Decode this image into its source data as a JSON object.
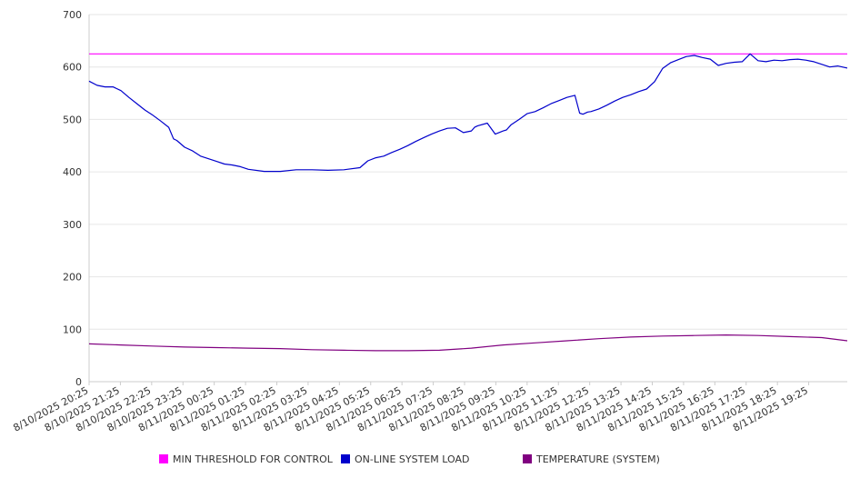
{
  "chart_data": {
    "type": "line",
    "title": "",
    "xlabel": "",
    "ylabel": "",
    "ylim": [
      0,
      700
    ],
    "y_ticks": [
      0,
      100,
      200,
      300,
      400,
      500,
      600,
      700
    ],
    "grid": "horizontal",
    "legend_position": "bottom",
    "x_ticks": [
      "8/10/2025 20:25",
      "8/10/2025 21:25",
      "8/10/2025 22:25",
      "8/10/2025 23:25",
      "8/11/2025 00:25",
      "8/11/2025 01:25",
      "8/11/2025 02:25",
      "8/11/2025 03:25",
      "8/11/2025 04:25",
      "8/11/2025 05:25",
      "8/11/2025 06:25",
      "8/11/2025 07:25",
      "8/11/2025 08:25",
      "8/11/2025 09:25",
      "8/11/2025 10:25",
      "8/11/2025 11:25",
      "8/11/2025 12:25",
      "8/11/2025 13:25",
      "8/11/2025 14:25",
      "8/11/2025 15:25",
      "8/11/2025 16:25",
      "8/11/2025 17:25",
      "8/11/2025 18:25",
      "8/11/2025 19:25"
    ],
    "x_hours_range": [
      0,
      23.8
    ],
    "series": [
      {
        "name": "MIN THRESHOLD FOR CONTROL",
        "color": "#ff00ff",
        "x": [
          0,
          23.8
        ],
        "values": [
          625,
          625
        ]
      },
      {
        "name": "ON-LINE SYSTEM LOAD",
        "color": "#0000cc",
        "x": [
          0,
          0.25,
          0.5,
          0.75,
          1.0,
          1.25,
          1.5,
          1.75,
          2.0,
          2.25,
          2.5,
          2.65,
          2.75,
          3.0,
          3.25,
          3.5,
          3.75,
          4.0,
          4.25,
          4.5,
          4.75,
          5.0,
          5.5,
          6.0,
          6.5,
          7.0,
          7.5,
          8.0,
          8.5,
          8.75,
          9.0,
          9.25,
          9.5,
          9.75,
          10.0,
          10.25,
          10.5,
          10.75,
          11.0,
          11.25,
          11.5,
          11.75,
          12.0,
          12.1,
          12.2,
          12.5,
          12.75,
          13.0,
          13.1,
          13.25,
          13.5,
          13.75,
          14.0,
          14.25,
          14.5,
          14.75,
          15.0,
          15.25,
          15.4,
          15.5,
          15.65,
          15.75,
          16.0,
          16.25,
          16.5,
          16.75,
          17.0,
          17.25,
          17.5,
          17.75,
          18.0,
          18.25,
          18.5,
          18.75,
          19.0,
          19.25,
          19.5,
          19.75,
          20.0,
          20.25,
          20.5,
          20.75,
          21.0,
          21.25,
          21.5,
          21.75,
          22.0,
          22.25,
          22.5,
          22.75,
          23.0,
          23.25,
          23.5,
          23.8
        ],
        "values": [
          573,
          565,
          562,
          562,
          555,
          542,
          530,
          518,
          508,
          497,
          485,
          463,
          460,
          447,
          440,
          430,
          425,
          420,
          415,
          413,
          410,
          405,
          401,
          401,
          404,
          404,
          403,
          404,
          408,
          421,
          427,
          430,
          437,
          443,
          450,
          458,
          465,
          472,
          478,
          483,
          484,
          475,
          478,
          485,
          488,
          493,
          472,
          478,
          480,
          490,
          500,
          511,
          515,
          522,
          530,
          536,
          542,
          546,
          512,
          510,
          514,
          515,
          520,
          527,
          535,
          542,
          547,
          553,
          558,
          572,
          597,
          608,
          614,
          620,
          622,
          618,
          615,
          603,
          607,
          609,
          610,
          625,
          612,
          610,
          613,
          612,
          614,
          615,
          613,
          610,
          605,
          600,
          602,
          598
        ]
      },
      {
        "name": "TEMPERATURE (SYSTEM)",
        "color": "#800080",
        "x": [
          0,
          1,
          2,
          3,
          4,
          5,
          6,
          7,
          8,
          9,
          10,
          11,
          12,
          13,
          14,
          15,
          16,
          17,
          18,
          19,
          20,
          21,
          22,
          23,
          23.8
        ],
        "values": [
          72,
          70,
          68,
          66,
          65,
          64,
          63,
          61,
          60,
          59,
          59,
          60,
          64,
          70,
          74,
          78,
          82,
          85,
          87,
          88,
          89,
          88,
          86,
          84,
          78
        ]
      }
    ]
  }
}
